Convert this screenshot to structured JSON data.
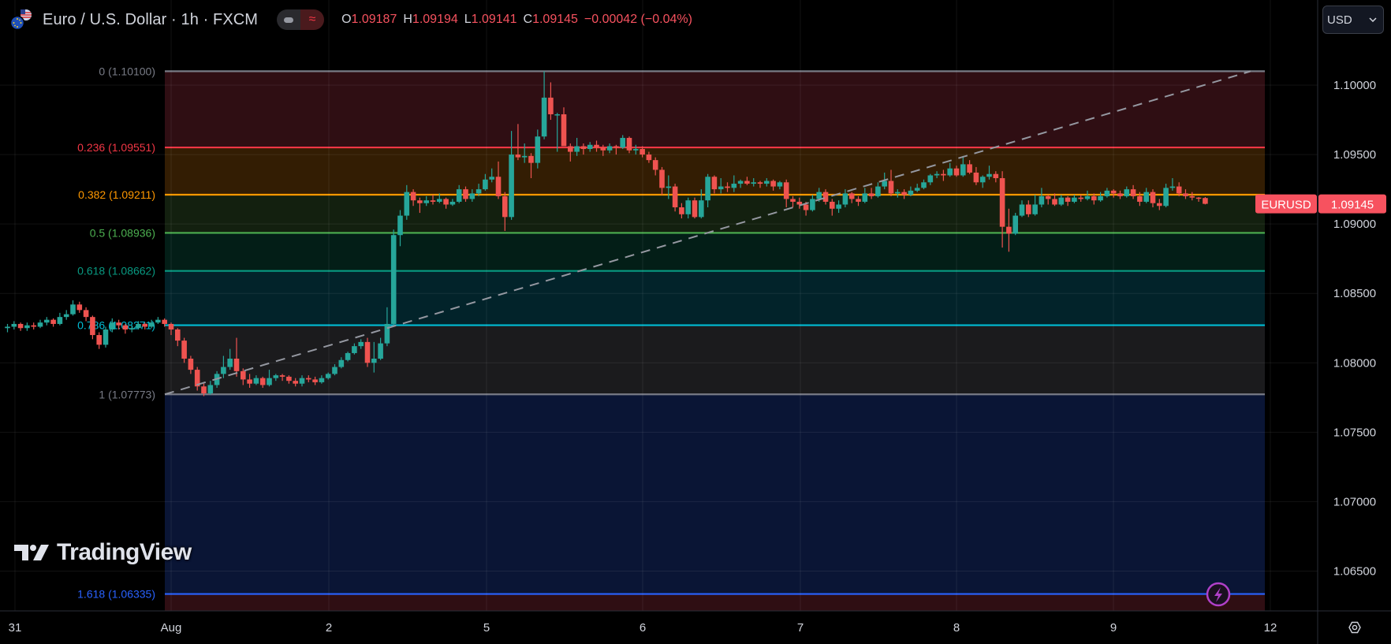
{
  "header": {
    "symbol_title": "Euro / U.S. Dollar · 1h · FXCM",
    "ohlc": {
      "o_label": "O",
      "o": "1.09187",
      "h_label": "H",
      "h": "1.09194",
      "l_label": "L",
      "l": "1.09141",
      "c_label": "C",
      "c": "1.09145",
      "change": "−0.00042 (−0.04%)"
    },
    "market_toggle_icon": "approx-icon"
  },
  "currency_button": {
    "label": "USD",
    "icon": "chevron-down-icon"
  },
  "last_price_tag": {
    "symbol": "EURUSD",
    "price": "1.09145",
    "color": "#f7525f"
  },
  "watermark": "TradingView",
  "colors": {
    "up": "#26a69a",
    "down": "#ef5350",
    "background": "#000000"
  },
  "chart_data": {
    "type": "candlestick",
    "interval": "1h",
    "x_tick_labels": [
      "31",
      "Aug",
      "2",
      "5",
      "6",
      "7",
      "8",
      "9",
      "12"
    ],
    "y_tick_labels": [
      "1.10000",
      "1.09500",
      "1.09000",
      "1.08500",
      "1.08000",
      "1.07500",
      "1.07000",
      "1.06500"
    ],
    "y_ticks": [
      1.1,
      1.095,
      1.09,
      1.085,
      1.08,
      1.075,
      1.07,
      1.065
    ],
    "ylim": [
      1.0615,
      1.1028
    ],
    "grid": true,
    "candles": [
      [
        1.0825,
        1.0828,
        1.0822,
        1.0826
      ],
      [
        1.0826,
        1.083,
        1.0824,
        1.0828
      ],
      [
        1.0828,
        1.0829,
        1.0823,
        1.0825
      ],
      [
        1.0825,
        1.0829,
        1.0823,
        1.0827
      ],
      [
        1.0827,
        1.0829,
        1.0824,
        1.0826
      ],
      [
        1.0826,
        1.0831,
        1.0825,
        1.0829
      ],
      [
        1.0829,
        1.0833,
        1.0827,
        1.0831
      ],
      [
        1.0831,
        1.0832,
        1.0826,
        1.0828
      ],
      [
        1.0828,
        1.0836,
        1.0827,
        1.0833
      ],
      [
        1.0833,
        1.0838,
        1.0831,
        1.0835
      ],
      [
        1.0835,
        1.0845,
        1.0834,
        1.0842
      ],
      [
        1.0842,
        1.0844,
        1.0836,
        1.0838
      ],
      [
        1.0838,
        1.084,
        1.083,
        1.0833
      ],
      [
        1.0833,
        1.0834,
        1.0817,
        1.082
      ],
      [
        1.082,
        1.0822,
        1.081,
        1.0813
      ],
      [
        1.0813,
        1.0826,
        1.0811,
        1.0824
      ],
      [
        1.0824,
        1.0832,
        1.0822,
        1.0829
      ],
      [
        1.0829,
        1.0831,
        1.0824,
        1.0827
      ],
      [
        1.0827,
        1.0828,
        1.0821,
        1.0824
      ],
      [
        1.0824,
        1.0827,
        1.0822,
        1.0825
      ],
      [
        1.0825,
        1.083,
        1.0824,
        1.0828
      ],
      [
        1.0828,
        1.0829,
        1.0824,
        1.0826
      ],
      [
        1.0826,
        1.0831,
        1.0825,
        1.0829
      ],
      [
        1.0829,
        1.0833,
        1.0828,
        1.0831
      ],
      [
        1.0831,
        1.0832,
        1.0826,
        1.0828
      ],
      [
        1.0828,
        1.0829,
        1.082,
        1.0824
      ],
      [
        1.0824,
        1.0825,
        1.0812,
        1.0816
      ],
      [
        1.0816,
        1.0818,
        1.08,
        1.0803
      ],
      [
        1.0803,
        1.0805,
        1.0792,
        1.0795
      ],
      [
        1.0795,
        1.0797,
        1.078,
        1.0783
      ],
      [
        1.0783,
        1.0785,
        1.0776,
        1.0778
      ],
      [
        1.0778,
        1.0787,
        1.0777,
        1.0784
      ],
      [
        1.0784,
        1.0794,
        1.0782,
        1.0792
      ],
      [
        1.0792,
        1.0805,
        1.0789,
        1.0797
      ],
      [
        1.0797,
        1.081,
        1.0795,
        1.0803
      ],
      [
        1.0803,
        1.0818,
        1.079,
        1.0794
      ],
      [
        1.0794,
        1.0796,
        1.0784,
        1.0788
      ],
      [
        1.0788,
        1.0792,
        1.0782,
        1.0785
      ],
      [
        1.0785,
        1.0791,
        1.0784,
        1.0789
      ],
      [
        1.0789,
        1.079,
        1.0782,
        1.0784
      ],
      [
        1.0784,
        1.0795,
        1.0783,
        1.0789
      ],
      [
        1.0789,
        1.0792,
        1.0787,
        1.0791
      ],
      [
        1.0791,
        1.0792,
        1.0787,
        1.079
      ],
      [
        1.079,
        1.0791,
        1.0785,
        1.0787
      ],
      [
        1.0787,
        1.0789,
        1.0783,
        1.0785
      ],
      [
        1.0785,
        1.0791,
        1.0783,
        1.0789
      ],
      [
        1.0789,
        1.0791,
        1.0786,
        1.0788
      ],
      [
        1.0788,
        1.079,
        1.0784,
        1.0786
      ],
      [
        1.0786,
        1.0791,
        1.0785,
        1.0789
      ],
      [
        1.0789,
        1.0793,
        1.0788,
        1.0792
      ],
      [
        1.0792,
        1.0799,
        1.0791,
        1.0797
      ],
      [
        1.0797,
        1.0804,
        1.0796,
        1.0802
      ],
      [
        1.0802,
        1.0808,
        1.0801,
        1.0807
      ],
      [
        1.0807,
        1.0814,
        1.0806,
        1.0812
      ],
      [
        1.0812,
        1.0817,
        1.081,
        1.0815
      ],
      [
        1.0815,
        1.0818,
        1.0797,
        1.08
      ],
      [
        1.08,
        1.0815,
        1.0793,
        1.0803
      ],
      [
        1.0803,
        1.0818,
        1.0802,
        1.0814
      ],
      [
        1.0814,
        1.084,
        1.0812,
        1.0828
      ],
      [
        1.0828,
        1.0896,
        1.0826,
        1.0892
      ],
      [
        1.0892,
        1.091,
        1.0884,
        1.0906
      ],
      [
        1.0906,
        1.0928,
        1.0903,
        1.0923
      ],
      [
        1.0923,
        1.0925,
        1.0913,
        1.0917
      ],
      [
        1.0917,
        1.0919,
        1.0908,
        1.0915
      ],
      [
        1.0915,
        1.092,
        1.0913,
        1.0917
      ],
      [
        1.0917,
        1.0921,
        1.0914,
        1.0916
      ],
      [
        1.0916,
        1.0922,
        1.0915,
        1.0918
      ],
      [
        1.0918,
        1.0919,
        1.0911,
        1.0914
      ],
      [
        1.0914,
        1.0918,
        1.0913,
        1.0916
      ],
      [
        1.0916,
        1.0928,
        1.0915,
        1.0925
      ],
      [
        1.0925,
        1.0927,
        1.0916,
        1.0918
      ],
      [
        1.0918,
        1.0925,
        1.0916,
        1.0922
      ],
      [
        1.0922,
        1.0929,
        1.092,
        1.0925
      ],
      [
        1.0925,
        1.0936,
        1.0924,
        1.0932
      ],
      [
        1.0932,
        1.094,
        1.093,
        1.0934
      ],
      [
        1.0934,
        1.0945,
        1.0918,
        1.092
      ],
      [
        1.092,
        1.0923,
        1.0895,
        1.0905
      ],
      [
        1.0905,
        1.0967,
        1.0903,
        1.095
      ],
      [
        1.095,
        1.0972,
        1.0946,
        1.0948
      ],
      [
        1.0948,
        1.0958,
        1.0944,
        1.0949
      ],
      [
        1.0949,
        1.0951,
        1.0933,
        1.0944
      ],
      [
        1.0944,
        1.0968,
        1.094,
        1.0963
      ],
      [
        1.0963,
        1.101,
        1.0961,
        1.0991
      ],
      [
        1.0991,
        1.1002,
        1.0975,
        1.0979
      ],
      [
        1.0979,
        1.098,
        1.0952,
        1.0979
      ],
      [
        1.0979,
        1.0984,
        1.0956,
        1.0956
      ],
      [
        1.0956,
        1.0958,
        1.0945,
        1.0952
      ],
      [
        1.0952,
        1.0962,
        1.0949,
        1.0956
      ],
      [
        1.0956,
        1.0958,
        1.095,
        1.0954
      ],
      [
        1.0954,
        1.0959,
        1.0952,
        1.0957
      ],
      [
        1.0957,
        1.096,
        1.0952,
        1.0955
      ],
      [
        1.0955,
        1.0957,
        1.0949,
        1.0953
      ],
      [
        1.0953,
        1.0958,
        1.0951,
        1.0956
      ],
      [
        1.0956,
        1.0957,
        1.095,
        1.0955
      ],
      [
        1.0955,
        1.0964,
        1.0954,
        1.0962
      ],
      [
        1.0962,
        1.0963,
        1.0951,
        1.0953
      ],
      [
        1.0953,
        1.0957,
        1.095,
        1.0954
      ],
      [
        1.0954,
        1.0956,
        1.0948,
        1.095
      ],
      [
        1.095,
        1.0952,
        1.0944,
        1.0946
      ],
      [
        1.0946,
        1.0948,
        1.0935,
        1.0939
      ],
      [
        1.0939,
        1.0941,
        1.0921,
        1.0926
      ],
      [
        1.0926,
        1.0935,
        1.0918,
        1.0927
      ],
      [
        1.0927,
        1.0929,
        1.0909,
        1.0912
      ],
      [
        1.0912,
        1.0915,
        1.0904,
        1.0907
      ],
      [
        1.0907,
        1.0919,
        1.0904,
        1.0917
      ],
      [
        1.0917,
        1.0919,
        1.0904,
        1.0905
      ],
      [
        1.0905,
        1.0925,
        1.0904,
        1.0917
      ],
      [
        1.0917,
        1.0936,
        1.0912,
        1.0934
      ],
      [
        1.0934,
        1.0935,
        1.0922,
        1.0925
      ],
      [
        1.0925,
        1.0933,
        1.0922,
        1.0927
      ],
      [
        1.0927,
        1.093,
        1.0923,
        1.0926
      ],
      [
        1.0926,
        1.0935,
        1.0923,
        1.0929
      ],
      [
        1.0929,
        1.0932,
        1.0926,
        1.0931
      ],
      [
        1.0931,
        1.0934,
        1.0928,
        1.0929
      ],
      [
        1.0929,
        1.0933,
        1.0927,
        1.093
      ],
      [
        1.093,
        1.0931,
        1.0926,
        1.0929
      ],
      [
        1.0929,
        1.0933,
        1.0927,
        1.0931
      ],
      [
        1.0931,
        1.0932,
        1.0924,
        1.0927
      ],
      [
        1.0927,
        1.0931,
        1.0925,
        1.093
      ],
      [
        1.093,
        1.0932,
        1.0912,
        1.0918
      ],
      [
        1.0918,
        1.092,
        1.0912,
        1.0916
      ],
      [
        1.0916,
        1.0919,
        1.0911,
        1.0914
      ],
      [
        1.0914,
        1.0916,
        1.0906,
        1.091
      ],
      [
        1.091,
        1.0921,
        1.0909,
        1.0918
      ],
      [
        1.0918,
        1.0926,
        1.0916,
        1.0923
      ],
      [
        1.0923,
        1.0925,
        1.0914,
        1.0916
      ],
      [
        1.0916,
        1.0918,
        1.0906,
        1.0911
      ],
      [
        1.0911,
        1.0917,
        1.0908,
        1.0914
      ],
      [
        1.0914,
        1.0925,
        1.0912,
        1.0922
      ],
      [
        1.0922,
        1.0923,
        1.0915,
        1.0918
      ],
      [
        1.0918,
        1.092,
        1.0913,
        1.0916
      ],
      [
        1.0916,
        1.0926,
        1.0915,
        1.0922
      ],
      [
        1.0922,
        1.0926,
        1.0918,
        1.092
      ],
      [
        1.092,
        1.093,
        1.0919,
        1.0927
      ],
      [
        1.0927,
        1.0937,
        1.0925,
        1.0931
      ],
      [
        1.0931,
        1.0939,
        1.092,
        1.0922
      ],
      [
        1.0922,
        1.0925,
        1.0919,
        1.0923
      ],
      [
        1.0923,
        1.0925,
        1.0918,
        1.0921
      ],
      [
        1.0921,
        1.0927,
        1.092,
        1.0924
      ],
      [
        1.0924,
        1.0929,
        1.0923,
        1.0926
      ],
      [
        1.0926,
        1.0932,
        1.0925,
        1.093
      ],
      [
        1.093,
        1.0936,
        1.0928,
        1.0935
      ],
      [
        1.0935,
        1.0938,
        1.0933,
        1.0936
      ],
      [
        1.0936,
        1.0939,
        1.0931,
        1.0935
      ],
      [
        1.0935,
        1.0944,
        1.0934,
        1.094
      ],
      [
        1.094,
        1.0942,
        1.0934,
        1.0935
      ],
      [
        1.0935,
        1.0949,
        1.0934,
        1.0943
      ],
      [
        1.0943,
        1.0946,
        1.0936,
        1.0937
      ],
      [
        1.0937,
        1.0941,
        1.0928,
        1.093
      ],
      [
        1.093,
        1.0935,
        1.0926,
        1.0934
      ],
      [
        1.0934,
        1.0942,
        1.0932,
        1.0936
      ],
      [
        1.0936,
        1.0938,
        1.093,
        1.0933
      ],
      [
        1.0933,
        1.0938,
        1.0883,
        1.0898
      ],
      [
        1.0898,
        1.0911,
        1.088,
        1.0893
      ],
      [
        1.0893,
        1.0908,
        1.0892,
        1.0906
      ],
      [
        1.0906,
        1.0917,
        1.0905,
        1.0914
      ],
      [
        1.0914,
        1.0917,
        1.0905,
        1.0907
      ],
      [
        1.0907,
        1.0921,
        1.0906,
        1.0914
      ],
      [
        1.0914,
        1.0926,
        1.0912,
        1.092
      ],
      [
        1.092,
        1.0921,
        1.0914,
        1.0918
      ],
      [
        1.0918,
        1.0922,
        1.0913,
        1.0914
      ],
      [
        1.0914,
        1.0921,
        1.0913,
        1.0919
      ],
      [
        1.0919,
        1.092,
        1.0913,
        1.0916
      ],
      [
        1.0916,
        1.0921,
        1.0915,
        1.0919
      ],
      [
        1.0919,
        1.0921,
        1.0916,
        1.0918
      ],
      [
        1.0918,
        1.0924,
        1.0917,
        1.092
      ],
      [
        1.092,
        1.0922,
        1.0914,
        1.0917
      ],
      [
        1.0917,
        1.0923,
        1.0916,
        1.092
      ],
      [
        1.092,
        1.0926,
        1.0919,
        1.0924
      ],
      [
        1.0924,
        1.0925,
        1.0919,
        1.0922
      ],
      [
        1.0922,
        1.0924,
        1.0918,
        1.092
      ],
      [
        1.092,
        1.0927,
        1.0919,
        1.0925
      ],
      [
        1.0925,
        1.0928,
        1.0918,
        1.092
      ],
      [
        1.092,
        1.0923,
        1.0913,
        1.0916
      ],
      [
        1.0916,
        1.0926,
        1.0915,
        1.0923
      ],
      [
        1.0923,
        1.0925,
        1.0912,
        1.0915
      ],
      [
        1.0915,
        1.0918,
        1.091,
        1.0913
      ],
      [
        1.0913,
        1.0929,
        1.0912,
        1.0926
      ],
      [
        1.0926,
        1.0933,
        1.0924,
        1.0927
      ],
      [
        1.0927,
        1.093,
        1.092,
        1.0922
      ],
      [
        1.0922,
        1.0925,
        1.0918,
        1.092
      ],
      [
        1.092,
        1.0923,
        1.0917,
        1.0919
      ],
      [
        1.0919,
        1.09194,
        1.0916,
        1.09187
      ],
      [
        1.09187,
        1.09194,
        1.09141,
        1.09145
      ]
    ],
    "fibonacci": {
      "levels": [
        {
          "ratio": "0",
          "price": 1.101,
          "label": "0 (1.10100)",
          "color": "#787b86",
          "fill": "#2f0e13"
        },
        {
          "ratio": "0.236",
          "price": 1.09551,
          "label": "0.236 (1.09551)",
          "color": "#f23645",
          "fill": "#331d03"
        },
        {
          "ratio": "0.382",
          "price": 1.09211,
          "label": "0.382 (1.09211)",
          "color": "#ff9800",
          "fill": "#13200f"
        },
        {
          "ratio": "0.5",
          "price": 1.08936,
          "label": "0.5 (1.08936)",
          "color": "#4caf50",
          "fill": "#031e17"
        },
        {
          "ratio": "0.618",
          "price": 1.08662,
          "label": "0.618 (1.08662)",
          "color": "#089981",
          "fill": "#02232a"
        },
        {
          "ratio": "0.786",
          "price": 1.08271,
          "label": "0.786 (1.08271)",
          "color": "#00bcd4",
          "fill": "#1b1b1d"
        },
        {
          "ratio": "1",
          "price": 1.07773,
          "label": "1 (1.07773)",
          "color": "#787b86",
          "fill": "#0a1535"
        },
        {
          "ratio": "1.618",
          "price": 1.06335,
          "label": "1.618 (1.06335)",
          "color": "#2962ff",
          "fill": "#2f0e13"
        }
      ],
      "trend_line": {
        "from_price": 1.07773,
        "to_price": 1.101,
        "color": "#9598a1"
      }
    }
  }
}
